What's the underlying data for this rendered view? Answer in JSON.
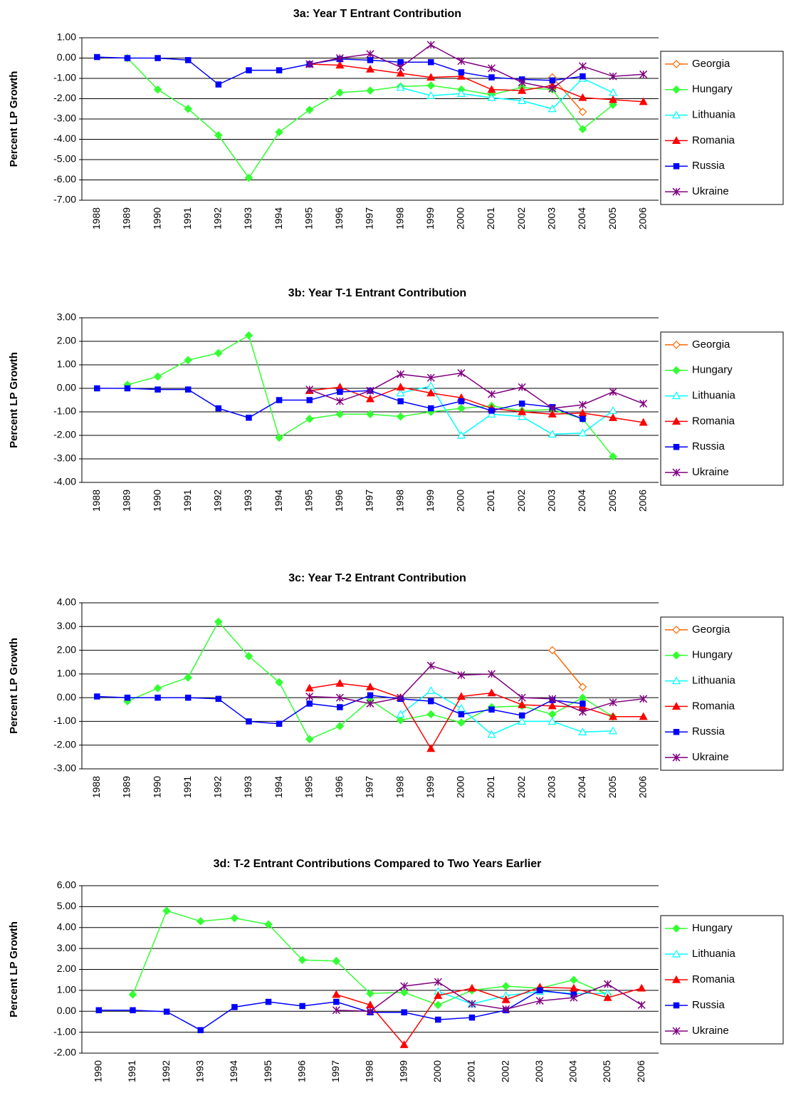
{
  "chart_data": [
    {
      "type": "line",
      "title": "3a: Year T  Entrant Contribution",
      "y_label": "Percent LP Growth",
      "categories": [
        "1988",
        "1989",
        "1990",
        "1991",
        "1992",
        "1993",
        "1994",
        "1995",
        "1996",
        "1997",
        "1998",
        "1999",
        "2000",
        "2001",
        "2002",
        "2003",
        "2004",
        "2005",
        "2006"
      ],
      "ylim": [
        -7,
        1
      ],
      "yticks": [
        {
          "value": 1,
          "label": "1.00"
        },
        {
          "value": 0,
          "label": "0.00"
        },
        {
          "value": -1,
          "label": "-1.00"
        },
        {
          "value": -2,
          "label": "-2.00"
        },
        {
          "value": -3,
          "label": "-3.00"
        },
        {
          "value": -4,
          "label": "-4.00"
        },
        {
          "value": -5,
          "label": "-5.00"
        },
        {
          "value": -6,
          "label": "-6.00"
        },
        {
          "value": -7,
          "label": "-7.00"
        }
      ],
      "grid": true,
      "series": [
        {
          "name": "Georgia",
          "color": "#ff6600",
          "marker": "diamond-open",
          "values": [
            null,
            null,
            null,
            null,
            null,
            null,
            null,
            null,
            null,
            null,
            null,
            null,
            null,
            null,
            null,
            -0.95,
            -2.65,
            null,
            null
          ]
        },
        {
          "name": "Hungary",
          "color": "#33ff33",
          "marker": "diamond",
          "values": [
            null,
            0,
            -1.55,
            -2.5,
            -3.8,
            -5.9,
            -3.65,
            -2.55,
            -1.7,
            -1.6,
            -1.4,
            -1.35,
            -1.55,
            -1.8,
            -1.45,
            -1.55,
            -3.5,
            -2.3,
            null
          ]
        },
        {
          "name": "Lithuania",
          "color": "#00ffff",
          "marker": "triangle-open",
          "values": [
            null,
            null,
            null,
            null,
            null,
            null,
            null,
            null,
            null,
            null,
            -1.45,
            -1.85,
            -1.75,
            -1.95,
            -2.1,
            -2.5,
            -1.0,
            -1.7,
            null
          ]
        },
        {
          "name": "Romania",
          "color": "#ff0000",
          "marker": "triangle",
          "values": [
            null,
            null,
            null,
            null,
            null,
            null,
            null,
            -0.3,
            -0.35,
            -0.55,
            -0.75,
            -0.95,
            -0.9,
            -1.55,
            -1.6,
            -1.35,
            -1.95,
            -2.05,
            -2.15
          ]
        },
        {
          "name": "Russia",
          "color": "#0000ff",
          "marker": "square",
          "values": [
            0.05,
            0,
            0,
            -0.1,
            -1.3,
            -0.6,
            -0.6,
            -0.3,
            -0.05,
            -0.1,
            -0.2,
            -0.2,
            -0.7,
            -0.95,
            -1.05,
            -1.1,
            -0.9,
            null,
            null
          ]
        },
        {
          "name": "Ukraine",
          "color": "#800080",
          "marker": "star",
          "values": [
            null,
            null,
            null,
            null,
            null,
            null,
            null,
            -0.3,
            0,
            0.2,
            -0.45,
            0.65,
            -0.15,
            -0.5,
            -1.2,
            -1.5,
            -0.4,
            -0.9,
            -0.8
          ]
        }
      ]
    },
    {
      "type": "line",
      "title": "3b: Year T-1 Entrant Contribution",
      "y_label": "Percent LP Growth",
      "categories": [
        "1988",
        "1989",
        "1990",
        "1991",
        "1992",
        "1993",
        "1994",
        "1995",
        "1996",
        "1997",
        "1998",
        "1999",
        "2000",
        "2001",
        "2002",
        "2003",
        "2004",
        "2005",
        "2006"
      ],
      "ylim": [
        -4,
        3
      ],
      "yticks": [
        {
          "value": 3,
          "label": "3.00"
        },
        {
          "value": 2,
          "label": "2.00"
        },
        {
          "value": 1,
          "label": "1.00"
        },
        {
          "value": 0,
          "label": "0.00"
        },
        {
          "value": -1,
          "label": "-1.00"
        },
        {
          "value": -2,
          "label": "-2.00"
        },
        {
          "value": -3,
          "label": "-3.00"
        },
        {
          "value": -4,
          "label": "-4.00"
        }
      ],
      "grid": true,
      "series": [
        {
          "name": "Georgia",
          "color": "#ff6600",
          "marker": "diamond-open",
          "values": [
            null,
            null,
            null,
            null,
            null,
            null,
            null,
            null,
            null,
            null,
            null,
            null,
            null,
            null,
            null,
            null,
            null,
            null,
            null
          ]
        },
        {
          "name": "Hungary",
          "color": "#33ff33",
          "marker": "diamond",
          "values": [
            null,
            0.15,
            0.5,
            1.2,
            1.5,
            2.25,
            -2.1,
            -1.3,
            -1.1,
            -1.1,
            -1.2,
            -1.0,
            -0.85,
            -0.75,
            -0.95,
            -0.9,
            -1.3,
            -2.9,
            null
          ]
        },
        {
          "name": "Lithuania",
          "color": "#00ffff",
          "marker": "triangle-open",
          "values": [
            null,
            null,
            null,
            null,
            null,
            null,
            null,
            null,
            null,
            null,
            -0.2,
            0.1,
            -2.0,
            -1.1,
            -1.2,
            -1.95,
            -1.9,
            -0.95,
            null
          ]
        },
        {
          "name": "Romania",
          "color": "#ff0000",
          "marker": "triangle",
          "values": [
            null,
            null,
            null,
            null,
            null,
            null,
            null,
            -0.1,
            0.05,
            -0.45,
            0.05,
            -0.2,
            -0.4,
            -0.85,
            -1.0,
            -1.1,
            -1.05,
            -1.25,
            -1.45
          ]
        },
        {
          "name": "Russia",
          "color": "#0000ff",
          "marker": "square",
          "values": [
            0,
            0,
            -0.05,
            -0.05,
            -0.85,
            -1.25,
            -0.5,
            -0.5,
            -0.15,
            -0.1,
            -0.55,
            -0.85,
            -0.55,
            -0.95,
            -0.65,
            -0.8,
            -1.3,
            null,
            null
          ]
        },
        {
          "name": "Ukraine",
          "color": "#800080",
          "marker": "star",
          "values": [
            null,
            null,
            null,
            null,
            null,
            null,
            null,
            -0.05,
            -0.55,
            -0.1,
            0.6,
            0.45,
            0.65,
            -0.25,
            0.05,
            -0.85,
            -0.7,
            -0.15,
            -0.65
          ]
        }
      ]
    },
    {
      "type": "line",
      "title": "3c: Year T-2 Entrant Contribution",
      "y_label": "Percent LP Growth",
      "categories": [
        "1988",
        "1989",
        "1990",
        "1991",
        "1992",
        "1993",
        "1994",
        "1995",
        "1996",
        "1997",
        "1998",
        "1999",
        "2000",
        "2001",
        "2002",
        "2003",
        "2004",
        "2005",
        "2006"
      ],
      "ylim": [
        -3,
        4
      ],
      "yticks": [
        {
          "value": 4,
          "label": "4.00"
        },
        {
          "value": 3,
          "label": "3.00"
        },
        {
          "value": 2,
          "label": "2.00"
        },
        {
          "value": 1,
          "label": "1.00"
        },
        {
          "value": 0,
          "label": "0.00"
        },
        {
          "value": -1,
          "label": "-1.00"
        },
        {
          "value": -2,
          "label": "-2.00"
        },
        {
          "value": -3,
          "label": "-3.00"
        }
      ],
      "grid": true,
      "series": [
        {
          "name": "Georgia",
          "color": "#ff6600",
          "marker": "diamond-open",
          "values": [
            null,
            null,
            null,
            null,
            null,
            null,
            null,
            null,
            null,
            null,
            null,
            null,
            null,
            null,
            null,
            2.0,
            0.45,
            null,
            null
          ]
        },
        {
          "name": "Hungary",
          "color": "#33ff33",
          "marker": "diamond",
          "values": [
            null,
            -0.15,
            0.4,
            0.85,
            3.2,
            1.75,
            0.65,
            -1.75,
            -1.2,
            -0.1,
            -0.95,
            -0.7,
            -1.05,
            -0.4,
            -0.35,
            -0.7,
            0.0,
            -0.8,
            null
          ]
        },
        {
          "name": "Lithuania",
          "color": "#00ffff",
          "marker": "triangle-open",
          "values": [
            null,
            null,
            null,
            null,
            null,
            null,
            null,
            null,
            null,
            null,
            -0.7,
            0.3,
            -0.45,
            -1.55,
            -1.0,
            -1.0,
            -1.45,
            -1.4,
            null
          ]
        },
        {
          "name": "Romania",
          "color": "#ff0000",
          "marker": "triangle",
          "values": [
            null,
            null,
            null,
            null,
            null,
            null,
            null,
            0.4,
            0.6,
            0.45,
            0.0,
            -2.15,
            0.05,
            0.2,
            -0.3,
            -0.35,
            -0.4,
            -0.8,
            -0.8
          ]
        },
        {
          "name": "Russia",
          "color": "#0000ff",
          "marker": "square",
          "values": [
            0.05,
            0,
            0,
            0,
            -0.05,
            -1.0,
            -1.1,
            -0.25,
            -0.4,
            0.1,
            -0.05,
            -0.15,
            -0.7,
            -0.5,
            -0.75,
            -0.1,
            -0.25,
            null,
            null
          ]
        },
        {
          "name": "Ukraine",
          "color": "#800080",
          "marker": "star",
          "values": [
            null,
            null,
            null,
            null,
            null,
            null,
            null,
            0.05,
            0.0,
            -0.25,
            0.0,
            1.35,
            0.95,
            1.0,
            0.0,
            -0.05,
            -0.6,
            -0.2,
            -0.05
          ]
        }
      ]
    },
    {
      "type": "line",
      "title": "3d: T-2 Entrant Contributions Compared to Two Years Earlier",
      "y_label": "Percent LP Growth",
      "categories": [
        "1990",
        "1991",
        "1992",
        "1993",
        "1994",
        "1995",
        "1996",
        "1997",
        "1998",
        "1999",
        "2000",
        "2001",
        "2002",
        "2003",
        "2004",
        "2005",
        "2006"
      ],
      "ylim": [
        -2,
        6
      ],
      "yticks": [
        {
          "value": 6,
          "label": "6.00"
        },
        {
          "value": 5,
          "label": "5.00"
        },
        {
          "value": 4,
          "label": "4.00"
        },
        {
          "value": 3,
          "label": "3.00"
        },
        {
          "value": 2,
          "label": "2.00"
        },
        {
          "value": 1,
          "label": "1.00"
        },
        {
          "value": 0,
          "label": "0.00"
        },
        {
          "value": -1,
          "label": "-1.00"
        },
        {
          "value": -2,
          "label": "-2.00"
        }
      ],
      "grid": true,
      "series": [
        {
          "name": "Hungary",
          "color": "#33ff33",
          "marker": "diamond",
          "values": [
            null,
            0.8,
            4.8,
            4.3,
            4.45,
            4.15,
            2.45,
            2.4,
            0.85,
            0.9,
            0.3,
            1.0,
            1.2,
            1.1,
            1.5,
            0.8,
            null
          ]
        },
        {
          "name": "Lithuania",
          "color": "#00ffff",
          "marker": "triangle-open",
          "values": [
            null,
            null,
            null,
            null,
            null,
            null,
            null,
            null,
            null,
            null,
            0.95,
            0.35,
            0.75,
            0.95,
            0.85,
            0.85,
            null
          ]
        },
        {
          "name": "Romania",
          "color": "#ff0000",
          "marker": "triangle",
          "values": [
            null,
            null,
            null,
            null,
            null,
            null,
            null,
            0.8,
            0.3,
            -1.6,
            0.75,
            1.1,
            0.55,
            1.15,
            1.1,
            0.65,
            1.1
          ]
        },
        {
          "name": "Russia",
          "color": "#0000ff",
          "marker": "square",
          "values": [
            0.05,
            0.05,
            -0.02,
            -0.9,
            0.2,
            0.45,
            0.25,
            0.45,
            -0.05,
            -0.05,
            -0.4,
            -0.3,
            0.05,
            1.0,
            0.8,
            null,
            null
          ]
        },
        {
          "name": "Ukraine",
          "color": "#800080",
          "marker": "star",
          "values": [
            null,
            null,
            null,
            null,
            null,
            null,
            null,
            0.05,
            0.0,
            1.2,
            1.4,
            0.35,
            0.1,
            0.5,
            0.65,
            1.3,
            0.3
          ]
        }
      ]
    }
  ]
}
